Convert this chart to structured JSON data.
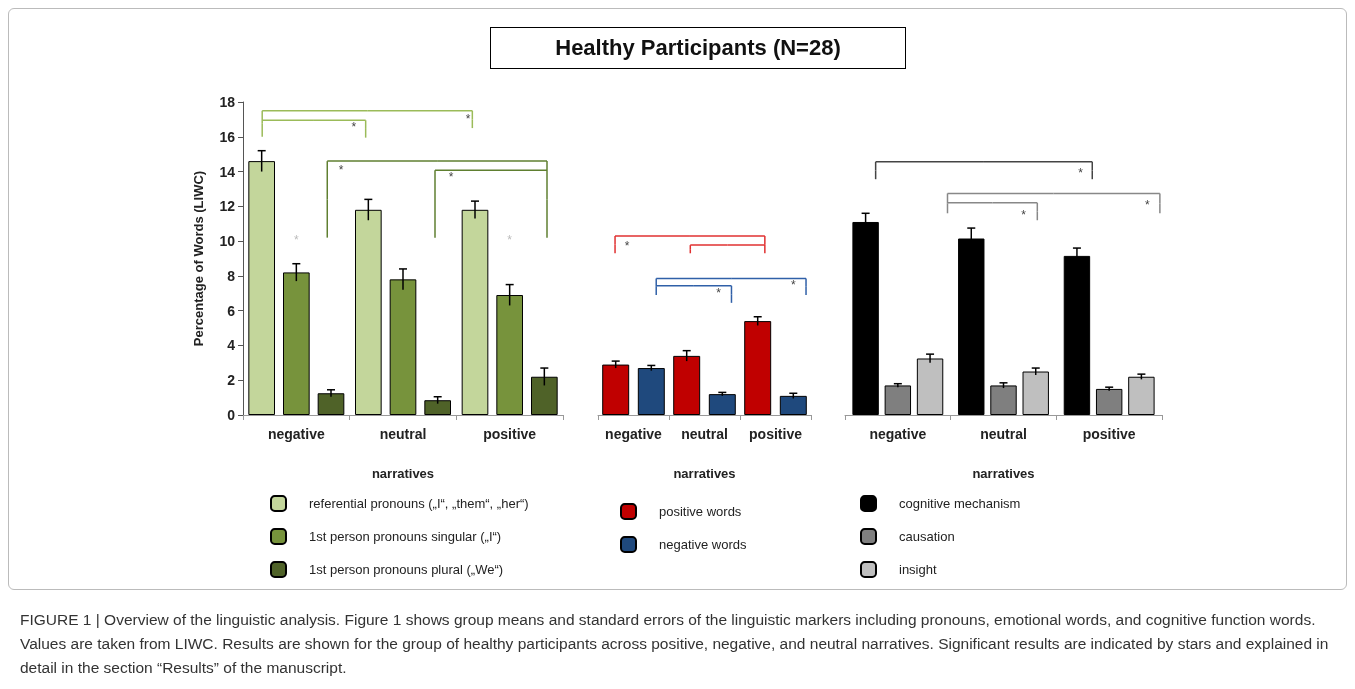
{
  "chart_data": [
    {
      "type": "bar",
      "ylabel": "Percentage of Words (LIWC)",
      "xlabel": "narratives",
      "categories": [
        "negative",
        "neutral",
        "positive"
      ],
      "series": [
        {
          "name": "referential pronouns („I“, „them“, „her“)",
          "color": "#c3d69b",
          "values": [
            14.6,
            11.8,
            11.8
          ],
          "errors": [
            0.6,
            0.6,
            0.5
          ]
        },
        {
          "name": "1st person pronouns singular („I“)",
          "color": "#77933c",
          "values": [
            8.2,
            7.8,
            6.9
          ],
          "errors": [
            0.5,
            0.6,
            0.6
          ]
        },
        {
          "name": "1st person pronouns plural („We“)",
          "color": "#4f6228",
          "values": [
            1.25,
            0.85,
            2.2
          ],
          "errors": [
            0.2,
            0.2,
            0.5
          ]
        }
      ],
      "ylim": [
        0,
        18
      ],
      "yticks": [
        0,
        2,
        4,
        6,
        8,
        10,
        12,
        14,
        16,
        18
      ],
      "grid": false,
      "legend": "bottom",
      "annotations": [
        "*",
        "*",
        "*",
        "*",
        "*",
        "*",
        "FIGURE 1 | Overview of the linguistic analysis. Figure 1 shows group means and standard errors of the linguistic markers including pronouns, emotional words, and cognitive function words. Values are taken from LIWC. Results are shown for the group of healthy participants across positive, negative, and neutral narratives. Significant results are indicated by stars and explained in detail in the section “Results” of the manuscript."
      ]
    },
    {
      "type": "bar",
      "title": "Healthy Participants (N=28)",
      "xlabel": "narratives",
      "categories": [
        "negative",
        "neutral",
        "positive"
      ],
      "series": [
        {
          "name": "positive words",
          "color": "#c00000",
          "values": [
            2.9,
            3.4,
            5.4
          ],
          "errors": [
            0.2,
            0.3,
            0.25
          ]
        },
        {
          "name": "negative words",
          "color": "#1f497d",
          "values": [
            2.7,
            1.2,
            1.1
          ],
          "errors": [
            0.15,
            0.1,
            0.15
          ]
        }
      ],
      "ylim": [
        0,
        18
      ],
      "yticks": [
        0,
        2,
        4,
        6,
        8,
        10,
        12,
        14,
        16,
        18
      ],
      "tick_labels": "x",
      "grid": false,
      "legend": "bottom",
      "annotations": [
        "*",
        "*",
        "*"
      ]
    },
    {
      "type": "bar",
      "xlabel": "narratives",
      "categories": [
        "negative",
        "neutral",
        "positive"
      ],
      "series": [
        {
          "name": "cognitive mechanism",
          "color": "#000000",
          "values": [
            11.1,
            10.15,
            9.15
          ],
          "errors": [
            0.5,
            0.6,
            0.45
          ]
        },
        {
          "name": "causation",
          "color": "#7f7f7f",
          "values": [
            1.7,
            1.7,
            1.5
          ],
          "errors": [
            0.1,
            0.15,
            0.1
          ]
        },
        {
          "name": "insight",
          "color": "#bfbfbf",
          "values": [
            3.25,
            2.5,
            2.2
          ],
          "errors": [
            0.25,
            0.2,
            0.15
          ]
        }
      ],
      "ylim": [
        0,
        18
      ],
      "yticks": [
        0,
        2,
        4,
        6,
        8,
        10,
        12,
        14,
        16,
        18
      ],
      "tick_labels": "x",
      "grid": false,
      "legend": "bottom",
      "annotations": [
        "*",
        "*",
        "*"
      ]
    }
  ]
}
